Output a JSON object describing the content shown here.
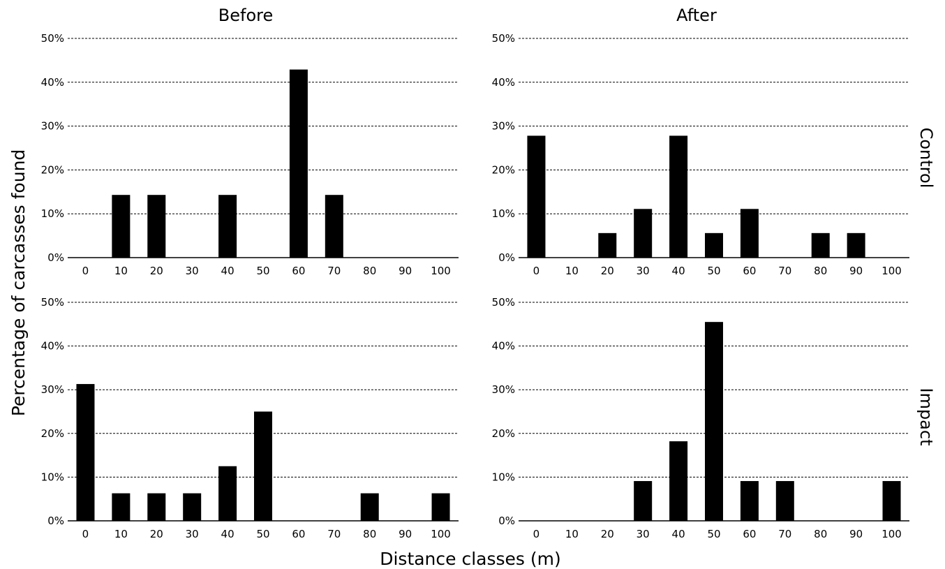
{
  "figure": {
    "col_titles": [
      "Before",
      "After"
    ],
    "row_labels": [
      "Control",
      "Impact"
    ],
    "ylabel": "Percentage of carcasses found",
    "xlabel": "Distance classes (m)"
  },
  "chart_data": [
    {
      "type": "bar",
      "title": "Before",
      "row": "Control",
      "categories": [
        "0",
        "10",
        "20",
        "30",
        "40",
        "50",
        "60",
        "70",
        "80",
        "90",
        "100"
      ],
      "values": [
        0,
        14.3,
        14.3,
        0,
        14.3,
        0,
        42.9,
        14.3,
        0,
        0,
        0
      ],
      "ylim": [
        0,
        50
      ],
      "yticks": [
        "0%",
        "10%",
        "20%",
        "30%",
        "40%",
        "50%"
      ],
      "grid": true
    },
    {
      "type": "bar",
      "title": "After",
      "row": "Control",
      "categories": [
        "0",
        "10",
        "20",
        "30",
        "40",
        "50",
        "60",
        "70",
        "80",
        "90",
        "100"
      ],
      "values": [
        27.8,
        0,
        5.6,
        11.1,
        27.8,
        5.6,
        11.1,
        0,
        5.6,
        5.6,
        0
      ],
      "ylim": [
        0,
        50
      ],
      "yticks": [
        "0%",
        "10%",
        "20%",
        "30%",
        "40%",
        "50%"
      ],
      "grid": true
    },
    {
      "type": "bar",
      "title": "Before",
      "row": "Impact",
      "categories": [
        "0",
        "10",
        "20",
        "30",
        "40",
        "50",
        "60",
        "70",
        "80",
        "90",
        "100"
      ],
      "values": [
        31.3,
        6.3,
        6.3,
        6.3,
        12.5,
        25.0,
        0,
        0,
        6.3,
        0,
        6.3
      ],
      "ylim": [
        0,
        50
      ],
      "yticks": [
        "0%",
        "10%",
        "20%",
        "30%",
        "40%",
        "50%"
      ],
      "grid": true
    },
    {
      "type": "bar",
      "title": "After",
      "row": "Impact",
      "categories": [
        "0",
        "10",
        "20",
        "30",
        "40",
        "50",
        "60",
        "70",
        "80",
        "90",
        "100"
      ],
      "values": [
        0,
        0,
        0,
        9.1,
        18.2,
        45.5,
        9.1,
        9.1,
        0,
        0,
        9.1
      ],
      "ylim": [
        0,
        50
      ],
      "yticks": [
        "0%",
        "10%",
        "20%",
        "30%",
        "40%",
        "50%"
      ],
      "grid": true
    }
  ]
}
